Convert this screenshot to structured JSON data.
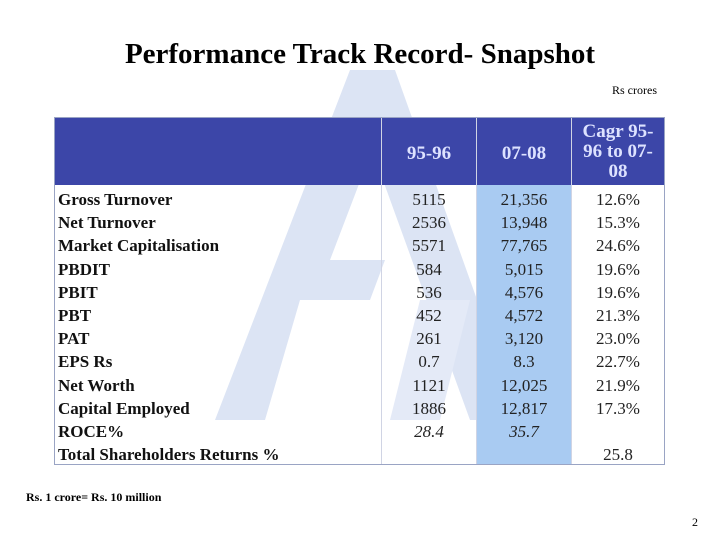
{
  "title": "Performance Track Record- Snapshot",
  "unit_note": "Rs crores",
  "footnote": "Rs. 1 crore= Rs. 10 million",
  "page_number": "2",
  "colors": {
    "header_bg": "#3c46a8",
    "header_text": "#dde2ff",
    "highlight_col": "#a9cbf2",
    "watermark": "#dce4f4"
  },
  "table": {
    "columns": [
      "",
      "95-96",
      "07-08",
      "Cagr 95-96 to 07-08"
    ],
    "rows": [
      {
        "label": "Gross Turnover",
        "y1": "5115",
        "y2": "21,356",
        "cagr": "12.6%"
      },
      {
        "label": "Net Turnover",
        "y1": "2536",
        "y2": "13,948",
        "cagr": "15.3%"
      },
      {
        "label": "Market Capitalisation",
        "y1": "5571",
        "y2": "77,765",
        "cagr": "24.6%"
      },
      {
        "label": "PBDIT",
        "y1": "584",
        "y2": "5,015",
        "cagr": "19.6%"
      },
      {
        "label": "PBIT",
        "y1": "536",
        "y2": "4,576",
        "cagr": "19.6%"
      },
      {
        "label": "PBT",
        "y1": "452",
        "y2": "4,572",
        "cagr": "21.3%"
      },
      {
        "label": "PAT",
        "y1": "261",
        "y2": "3,120",
        "cagr": "23.0%"
      },
      {
        "label": "EPS Rs",
        "y1": "0.7",
        "y2": "8.3",
        "cagr": "22.7%"
      },
      {
        "label": "Net Worth",
        "y1": "1121",
        "y2": "12,025",
        "cagr": "21.9%"
      },
      {
        "label": "Capital Employed",
        "y1": "1886",
        "y2": "12,817",
        "cagr": "17.3%"
      },
      {
        "label": "ROCE%",
        "y1": "28.4",
        "y2": "35.7",
        "cagr": ""
      },
      {
        "label": "Total Shareholders Returns %",
        "y1": "",
        "y2": "",
        "cagr": "25.8"
      }
    ]
  }
}
